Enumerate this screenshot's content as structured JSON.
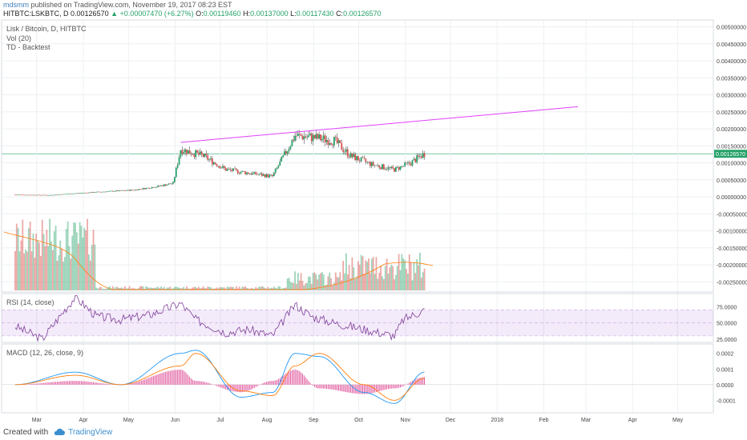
{
  "header": {
    "user": "mdsmm",
    "published": "published on TradingView.com, November 19, 2017 08:23 EST"
  },
  "symbol": {
    "ticker": "HITBTC:LSKBTC, D",
    "price": "0.00126570",
    "change": "+0.00007470 (+6.27%)",
    "o_label": "O:",
    "o_val": "0.00119460",
    "h_label": "H:",
    "h_val": "0.00137000",
    "l_label": "L:",
    "l_val": "0.00117430",
    "c_label": "C:",
    "c_val": "0.00126570"
  },
  "panes": {
    "main_title": "Lisk / Bitcoin, D, HITBTC",
    "vol_title": "Vol (20)",
    "td_title": "TD - Backtest",
    "rsi_title": "RSI (14, close)",
    "macd_title": "MACD (12, 26, close, 9)"
  },
  "price_axis": [
    "0.00500000",
    "0.00450000",
    "0.00400000",
    "0.00350000",
    "0.00300000",
    "0.00250000",
    "0.00200000",
    "0.00150000",
    "0.00100000",
    "0.00050000",
    "0.00000000",
    "-0.00050000",
    "-0.00100000",
    "-0.00150000",
    "-0.00200000",
    "-0.00250000"
  ],
  "last_price_tag": "0.00126570",
  "rsi_axis": [
    "75.0000",
    "50.0000",
    "25.0000"
  ],
  "macd_axis": [
    "0.0002",
    "0.0001",
    "0.0000",
    "-0.0001"
  ],
  "time_axis": [
    "Mar",
    "Apr",
    "May",
    "Jun",
    "Jul",
    "Aug",
    "Sep",
    "Oct",
    "Nov",
    "Dec",
    "2018",
    "Feb",
    "Mar",
    "Apr",
    "May"
  ],
  "footer": {
    "created": "Created with",
    "brand": "TradingView"
  },
  "colors": {
    "up": "#26a269",
    "down": "#d9534f",
    "trend": "#e040fb",
    "rsi": "#7e3f98",
    "macd": "#2196f3",
    "signal": "#ff7f0e",
    "grid": "#eef0f3"
  },
  "chart_data": [
    {
      "type": "line",
      "title": "Lisk / Bitcoin, D, HITBTC",
      "x": [
        "2017-02-20",
        "2017-03-15",
        "2017-04-01",
        "2017-04-20",
        "2017-05-10",
        "2017-05-25",
        "2017-06-05",
        "2017-06-10",
        "2017-06-25",
        "2017-07-10",
        "2017-07-25",
        "2017-08-10",
        "2017-08-25",
        "2017-09-05",
        "2017-09-20",
        "2017-10-01",
        "2017-10-15",
        "2017-10-30",
        "2017-11-10",
        "2017-11-19"
      ],
      "series": [
        {
          "values": [
            6e-05,
            5e-05,
            0.0001,
            0.00015,
            0.0002,
            0.0003,
            0.0004,
            0.0014,
            0.0012,
            0.0008,
            0.0007,
            0.0006,
            0.0018,
            0.00175,
            0.00165,
            0.0012,
            0.00095,
            0.0008,
            0.001,
            0.00127
          ]
        }
      ],
      "trendline": {
        "start": [
          "2017-06-10",
          0.0016
        ],
        "end": [
          "2018-03-01",
          0.00265
        ]
      },
      "ylim": [
        -0.0028,
        0.0052
      ],
      "grid": true
    },
    {
      "type": "line",
      "title": "RSI (14, close)",
      "x": [
        "2017-02-20",
        "2017-03-10",
        "2017-03-25",
        "2017-04-01",
        "2017-04-15",
        "2017-05-01",
        "2017-05-20",
        "2017-06-10",
        "2017-06-20",
        "2017-07-10",
        "2017-07-25",
        "2017-08-10",
        "2017-08-25",
        "2017-09-05",
        "2017-09-20",
        "2017-10-10",
        "2017-10-30",
        "2017-11-05",
        "2017-11-19"
      ],
      "series": [
        {
          "values": [
            45,
            25,
            70,
            90,
            60,
            55,
            62,
            80,
            55,
            35,
            40,
            30,
            78,
            60,
            50,
            40,
            30,
            55,
            70
          ]
        }
      ],
      "ylim": [
        20,
        95
      ],
      "bands": [
        30,
        70
      ]
    },
    {
      "type": "line",
      "title": "MACD (12, 26, close, 9)",
      "x": [
        "2017-02-20",
        "2017-04-01",
        "2017-05-01",
        "2017-06-10",
        "2017-06-20",
        "2017-07-20",
        "2017-08-10",
        "2017-08-25",
        "2017-09-10",
        "2017-10-10",
        "2017-10-30",
        "2017-11-19"
      ],
      "series": [
        {
          "values": [
            0.0,
            8e-05,
            0.0,
            0.0002,
            0.00022,
            -8e-05,
            -5e-05,
            0.0002,
            0.00018,
            -5e-05,
            -0.00012,
            8e-05
          ]
        },
        {
          "values": [
            0.0,
            6e-05,
            0.0,
            0.00012,
            0.0002,
            -4e-05,
            -7e-05,
            0.00012,
            0.0002,
            0.0,
            -0.0001,
            4e-05
          ]
        }
      ],
      "ylim": [
        -0.00018,
        0.00026
      ]
    }
  ]
}
